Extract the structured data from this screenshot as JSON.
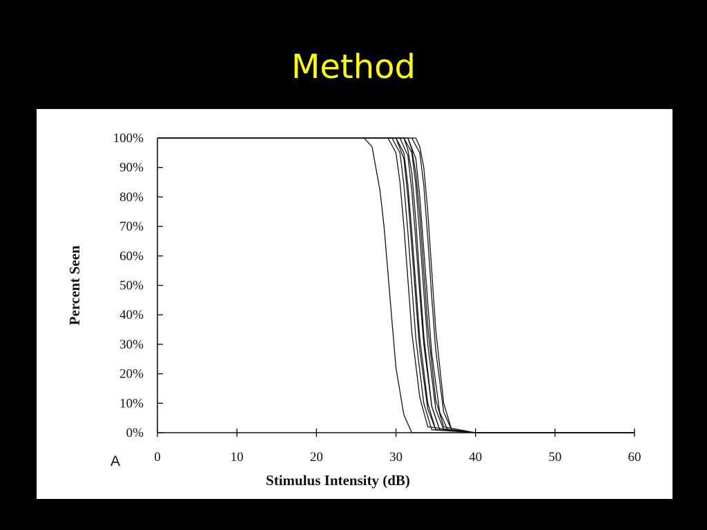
{
  "slide": {
    "title": "Method"
  },
  "chart_data": {
    "type": "line",
    "panel_label": "A",
    "title": "",
    "xlabel": "Stimulus Intensity (dB)",
    "ylabel": "Percent Seen",
    "xlim": [
      0,
      60
    ],
    "ylim": [
      0,
      100
    ],
    "x_ticks": [
      0,
      10,
      20,
      30,
      40,
      50,
      60
    ],
    "x_tick_labels": [
      "0",
      "10",
      "20",
      "30",
      "40",
      "50",
      "60"
    ],
    "y_ticks": [
      0,
      10,
      20,
      30,
      40,
      50,
      60,
      70,
      80,
      90,
      100
    ],
    "y_tick_labels": [
      "0%",
      "10%",
      "20%",
      "30%",
      "40%",
      "50%",
      "60%",
      "70%",
      "80%",
      "90%",
      "100%"
    ],
    "grid": false,
    "legend": "none",
    "line_color": "#111111",
    "series": [
      {
        "x": [
          0,
          26,
          27,
          28,
          28.5,
          29,
          29.5,
          30,
          31,
          32,
          40,
          60
        ],
        "y": [
          100,
          100,
          97,
          82,
          70,
          54,
          38,
          22,
          6,
          0,
          0,
          0
        ]
      },
      {
        "x": [
          0,
          29,
          30,
          30.5,
          31,
          31.5,
          32,
          33,
          34,
          40,
          60
        ],
        "y": [
          100,
          100,
          95,
          85,
          70,
          52,
          34,
          12,
          2,
          0,
          0
        ]
      },
      {
        "x": [
          0,
          29.5,
          30.5,
          31,
          31.5,
          32,
          32.5,
          33.5,
          34.5,
          40,
          60
        ],
        "y": [
          100,
          100,
          95,
          84,
          68,
          50,
          32,
          10,
          1,
          0,
          0
        ]
      },
      {
        "x": [
          0,
          30,
          31,
          31.5,
          32,
          32.5,
          33,
          34,
          35,
          40,
          60
        ],
        "y": [
          100,
          100,
          95,
          84,
          68,
          50,
          32,
          10,
          1,
          0,
          0
        ]
      },
      {
        "x": [
          0,
          30.5,
          31.5,
          32,
          32.5,
          33,
          33.5,
          34.5,
          35.5,
          40,
          60
        ],
        "y": [
          100,
          100,
          94,
          82,
          65,
          47,
          30,
          9,
          1,
          0,
          0
        ]
      },
      {
        "x": [
          0,
          31,
          32,
          32.5,
          33,
          33.5,
          34,
          35,
          36,
          40,
          60
        ],
        "y": [
          100,
          100,
          95,
          84,
          67,
          48,
          30,
          8,
          1,
          0,
          0
        ]
      },
      {
        "x": [
          0,
          31.5,
          32.5,
          33,
          33.5,
          34,
          34.5,
          35.5,
          36.5,
          40,
          60
        ],
        "y": [
          100,
          100,
          93,
          80,
          62,
          44,
          27,
          7,
          1,
          0,
          0
        ]
      },
      {
        "x": [
          0,
          31.5,
          32,
          32.5,
          33,
          33.5,
          34,
          35,
          36,
          40,
          60
        ],
        "y": [
          100,
          100,
          96,
          88,
          74,
          55,
          36,
          11,
          2,
          0,
          0
        ]
      },
      {
        "x": [
          0,
          32,
          33,
          33.5,
          34,
          34.5,
          35,
          36,
          37,
          40,
          60
        ],
        "y": [
          100,
          100,
          95,
          84,
          66,
          46,
          28,
          7,
          1,
          0,
          0
        ]
      },
      {
        "x": [
          0,
          32.5,
          33,
          33.5,
          34,
          34.5,
          35,
          36,
          37,
          40,
          60
        ],
        "y": [
          100,
          100,
          97,
          90,
          75,
          55,
          35,
          10,
          1,
          0,
          0
        ]
      },
      {
        "x": [
          0,
          30,
          31,
          31.5,
          32,
          32.5,
          33,
          34,
          35,
          40,
          60
        ],
        "y": [
          100,
          100,
          93,
          80,
          63,
          45,
          28,
          8,
          1,
          0,
          0
        ]
      },
      {
        "x": [
          0,
          31,
          31.5,
          32,
          32.5,
          33,
          33.5,
          34.5,
          35.5,
          40,
          60
        ],
        "y": [
          100,
          100,
          96,
          88,
          72,
          52,
          33,
          9,
          1,
          0,
          0
        ]
      }
    ]
  }
}
